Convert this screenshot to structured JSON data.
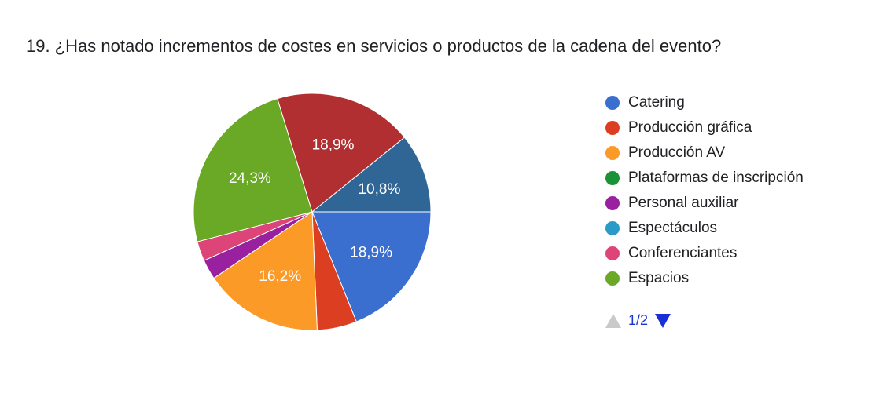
{
  "question": {
    "title": "19. ¿Has notado incrementos de costes en servicios o productos de la cadena del evento?"
  },
  "chart_data": {
    "type": "pie",
    "title": "19. ¿Has notado incrementos de costes en servicios o productos de la cadena del evento?",
    "slices": [
      {
        "label": "Catering",
        "value": 18.9,
        "color": "#3a6fcf",
        "data_label": "18,9%"
      },
      {
        "label": "Producción gráfica",
        "value": 5.4,
        "color": "#dc3e22",
        "data_label": ""
      },
      {
        "label": "Producción AV",
        "value": 16.2,
        "color": "#fb9a27",
        "data_label": "16,2%"
      },
      {
        "label": "Personal auxiliar",
        "value": 2.7,
        "color": "#99209f",
        "data_label": ""
      },
      {
        "label": "Conferenciantes",
        "value": 2.7,
        "color": "#dd4477",
        "data_label": ""
      },
      {
        "label": "Espacios",
        "value": 24.3,
        "color": "#6aa925",
        "data_label": "24,3%"
      },
      {
        "label": "",
        "value": 18.9,
        "color": "#b22f31",
        "data_label": "18,9%"
      },
      {
        "label": "",
        "value": 10.8,
        "color": "#306696",
        "data_label": "10,8%"
      }
    ],
    "legend_placement": "right"
  },
  "legend": {
    "items": [
      {
        "label": "Catering",
        "color": "#3a6fcf"
      },
      {
        "label": "Producción gráfica",
        "color": "#dc3e22"
      },
      {
        "label": "Producción AV",
        "color": "#fb9a27"
      },
      {
        "label": "Plataformas de inscripción",
        "color": "#199336"
      },
      {
        "label": "Personal auxiliar",
        "color": "#99209f"
      },
      {
        "label": "Espectáculos",
        "color": "#2a9bc6"
      },
      {
        "label": "Conferenciantes",
        "color": "#dd4477"
      },
      {
        "label": "Espacios",
        "color": "#6aa925"
      }
    ],
    "pager": {
      "text": "1/2",
      "prev_icon": "triangle-up-icon",
      "next_icon": "triangle-down-icon",
      "prev_color": "#c9c9c9",
      "next_color": "#1a2fd6"
    }
  }
}
